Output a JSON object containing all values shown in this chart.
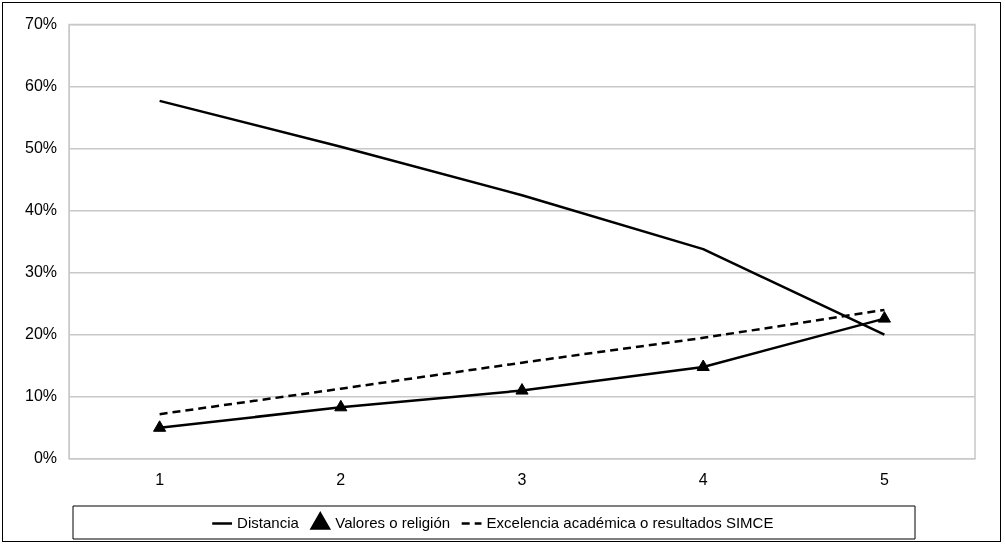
{
  "chart_data": {
    "type": "line",
    "categories": [
      "1",
      "2",
      "3",
      "4",
      "5"
    ],
    "series": [
      {
        "name": "Distancia",
        "color": "#000000",
        "values": [
          57.7,
          50.3,
          42.5,
          33.8,
          20.0
        ]
      },
      {
        "name": "Valores o religión",
        "color": "#000000",
        "marker": "triangle",
        "values": [
          5.0,
          8.3,
          11.0,
          14.8,
          22.6
        ]
      },
      {
        "name": "Excelencia académica o resultados SIMCE",
        "color": "#000000",
        "line_style": "dashed",
        "values": [
          7.2,
          11.3,
          15.5,
          19.5,
          24.0
        ]
      }
    ],
    "ylim": [
      0,
      70
    ],
    "yticks": [
      {
        "value": 0,
        "label": "0%"
      },
      {
        "value": 10,
        "label": "10%"
      },
      {
        "value": 20,
        "label": "20%"
      },
      {
        "value": 30,
        "label": "30%"
      },
      {
        "value": 40,
        "label": "40%"
      },
      {
        "value": 50,
        "label": "50%"
      },
      {
        "value": 60,
        "label": "60%"
      },
      {
        "value": 70,
        "label": "70%"
      }
    ],
    "grid": "y",
    "legend": "bottom",
    "marker": "none",
    "line_style": "solid"
  }
}
